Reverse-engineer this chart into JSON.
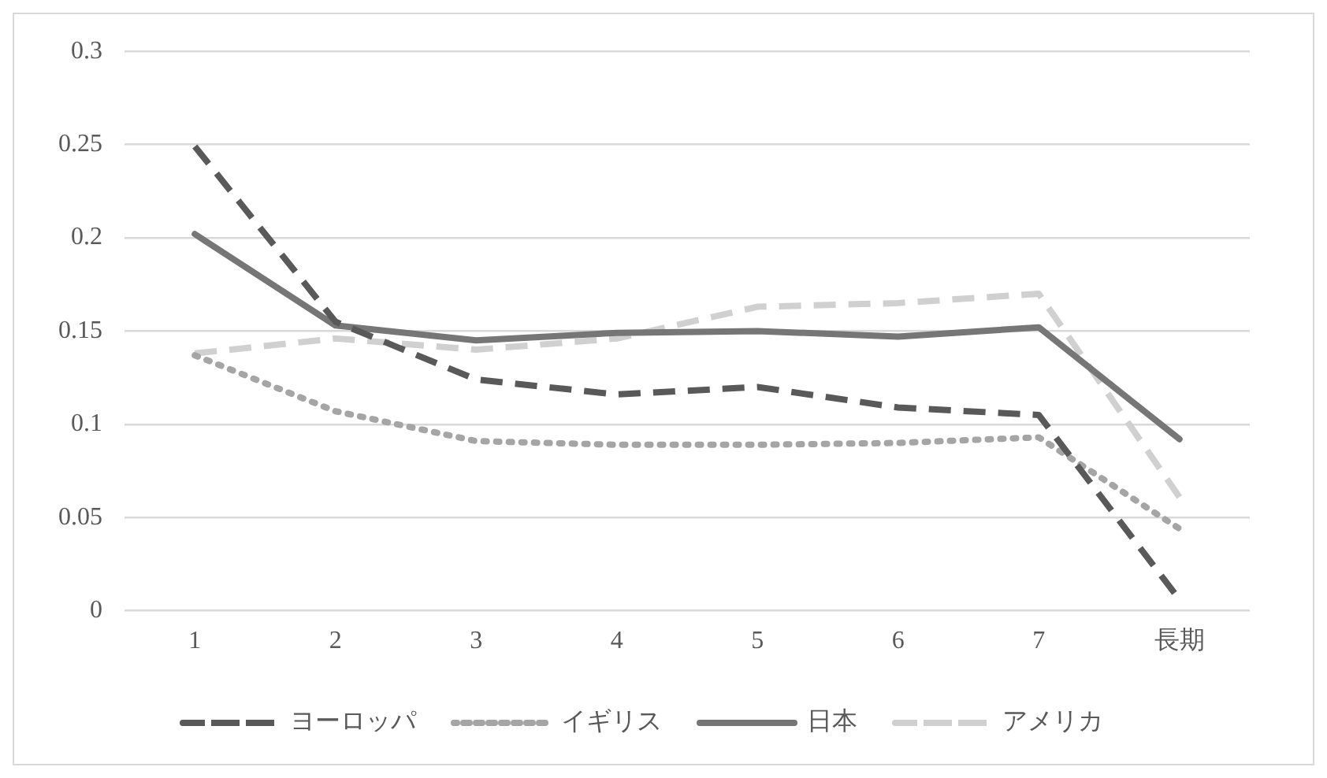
{
  "chart_data": {
    "type": "line",
    "categories": [
      "1",
      "2",
      "3",
      "4",
      "5",
      "6",
      "7",
      "長期"
    ],
    "series": [
      {
        "name": "ヨーロッパ",
        "color": "#595959",
        "line_style": "dashed",
        "values": [
          0.249,
          0.155,
          0.124,
          0.116,
          0.12,
          0.109,
          0.105,
          0.006
        ]
      },
      {
        "name": "イギリス",
        "color": "#a5a5a5",
        "line_style": "dotted",
        "values": [
          0.137,
          0.107,
          0.091,
          0.089,
          0.089,
          0.09,
          0.093,
          0.044
        ]
      },
      {
        "name": "日本",
        "color": "#767676",
        "line_style": "solid",
        "values": [
          0.202,
          0.153,
          0.145,
          0.149,
          0.15,
          0.147,
          0.152,
          0.092
        ]
      },
      {
        "name": "アメリカ",
        "color": "#d0d0d0",
        "line_style": "dashed",
        "values": [
          0.138,
          0.146,
          0.14,
          0.146,
          0.163,
          0.165,
          0.17,
          0.061
        ]
      }
    ],
    "ylim": [
      0,
      0.3
    ],
    "yticks": [
      0,
      0.05,
      0.1,
      0.15,
      0.2,
      0.25,
      0.3
    ],
    "grid": "y",
    "legend": "bottom",
    "marker": "none"
  }
}
